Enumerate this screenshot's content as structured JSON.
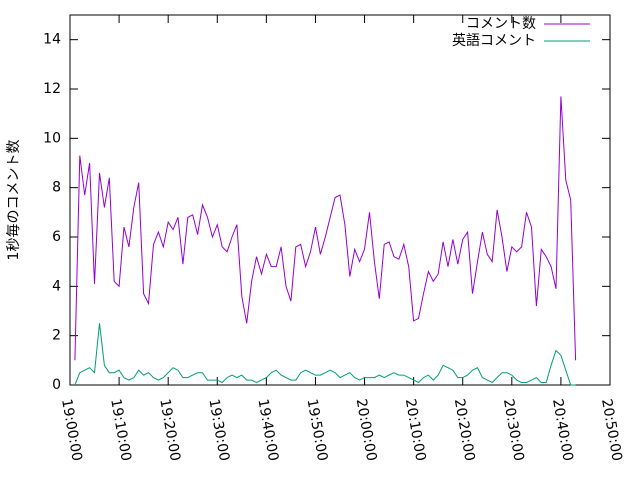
{
  "chart_data": {
    "type": "line",
    "ylabel": "1秒毎のコメント数",
    "x": [
      "19:01:00",
      "19:02:00",
      "19:03:00",
      "19:04:00",
      "19:05:00",
      "19:06:00",
      "19:07:00",
      "19:08:00",
      "19:09:00",
      "19:10:00",
      "19:11:00",
      "19:12:00",
      "19:13:00",
      "19:14:00",
      "19:15:00",
      "19:16:00",
      "19:17:00",
      "19:18:00",
      "19:19:00",
      "19:20:00",
      "19:21:00",
      "19:22:00",
      "19:23:00",
      "19:24:00",
      "19:25:00",
      "19:26:00",
      "19:27:00",
      "19:28:00",
      "19:29:00",
      "19:30:00",
      "19:31:00",
      "19:32:00",
      "19:33:00",
      "19:34:00",
      "19:35:00",
      "19:36:00",
      "19:37:00",
      "19:38:00",
      "19:39:00",
      "19:40:00",
      "19:41:00",
      "19:42:00",
      "19:43:00",
      "19:44:00",
      "19:45:00",
      "19:46:00",
      "19:47:00",
      "19:48:00",
      "19:49:00",
      "19:50:00",
      "19:51:00",
      "19:52:00",
      "19:53:00",
      "19:54:00",
      "19:55:00",
      "19:56:00",
      "19:57:00",
      "19:58:00",
      "19:59:00",
      "20:00:00",
      "20:01:00",
      "20:02:00",
      "20:03:00",
      "20:04:00",
      "20:05:00",
      "20:06:00",
      "20:07:00",
      "20:08:00",
      "20:09:00",
      "20:10:00",
      "20:11:00",
      "20:12:00",
      "20:13:00",
      "20:14:00",
      "20:15:00",
      "20:16:00",
      "20:17:00",
      "20:18:00",
      "20:19:00",
      "20:20:00",
      "20:21:00",
      "20:22:00",
      "20:23:00",
      "20:24:00",
      "20:25:00",
      "20:26:00",
      "20:27:00",
      "20:28:00",
      "20:29:00",
      "20:30:00",
      "20:31:00",
      "20:32:00",
      "20:33:00",
      "20:34:00",
      "20:35:00",
      "20:36:00",
      "20:37:00",
      "20:38:00",
      "20:39:00",
      "20:40:00",
      "20:41:00",
      "20:42:00",
      "20:43:00"
    ],
    "series": [
      {
        "name": "コメント数",
        "color": "#9400d3",
        "values": [
          1.0,
          9.3,
          7.7,
          9.0,
          4.1,
          8.6,
          7.2,
          8.4,
          4.2,
          4.0,
          6.4,
          5.6,
          7.2,
          8.2,
          3.7,
          3.3,
          5.7,
          6.2,
          5.6,
          6.6,
          6.3,
          6.8,
          4.9,
          6.8,
          6.9,
          6.1,
          7.3,
          6.8,
          6.0,
          6.5,
          5.6,
          5.4,
          6.0,
          6.5,
          3.6,
          2.5,
          4.2,
          5.2,
          4.5,
          5.3,
          4.8,
          4.8,
          5.6,
          4.0,
          3.4,
          5.6,
          5.7,
          4.8,
          5.4,
          6.4,
          5.3,
          6.0,
          6.8,
          7.6,
          7.7,
          6.5,
          4.4,
          5.5,
          5.0,
          5.5,
          7.0,
          5.0,
          3.5,
          5.7,
          5.8,
          5.2,
          5.1,
          5.7,
          4.8,
          2.6,
          2.7,
          3.7,
          4.6,
          4.2,
          4.5,
          5.8,
          4.8,
          5.9,
          4.9,
          5.9,
          6.2,
          3.7,
          5.0,
          6.2,
          5.3,
          5.0,
          7.1,
          6.0,
          4.6,
          5.6,
          5.4,
          5.6,
          7.0,
          6.4,
          3.2,
          5.5,
          5.2,
          4.8,
          3.9,
          11.7,
          8.3,
          7.5,
          1.0
        ]
      },
      {
        "name": "英語コメント",
        "color": "#009e73",
        "values": [
          0.0,
          0.5,
          0.6,
          0.7,
          0.5,
          2.5,
          0.8,
          0.5,
          0.5,
          0.6,
          0.3,
          0.2,
          0.3,
          0.6,
          0.4,
          0.5,
          0.3,
          0.2,
          0.3,
          0.5,
          0.7,
          0.6,
          0.3,
          0.3,
          0.4,
          0.5,
          0.5,
          0.2,
          0.2,
          0.2,
          0.1,
          0.3,
          0.4,
          0.3,
          0.4,
          0.2,
          0.2,
          0.1,
          0.2,
          0.3,
          0.5,
          0.6,
          0.4,
          0.3,
          0.2,
          0.2,
          0.5,
          0.6,
          0.5,
          0.4,
          0.4,
          0.5,
          0.6,
          0.5,
          0.3,
          0.4,
          0.5,
          0.3,
          0.2,
          0.3,
          0.3,
          0.3,
          0.4,
          0.3,
          0.4,
          0.5,
          0.4,
          0.4,
          0.3,
          0.2,
          0.1,
          0.3,
          0.4,
          0.2,
          0.4,
          0.8,
          0.7,
          0.6,
          0.3,
          0.3,
          0.4,
          0.6,
          0.7,
          0.3,
          0.2,
          0.1,
          0.3,
          0.5,
          0.5,
          0.4,
          0.2,
          0.1,
          0.1,
          0.2,
          0.3,
          0.1,
          0.1,
          0.8,
          1.4,
          1.2,
          0.6,
          0.0,
          0.0
        ]
      }
    ],
    "xlim": [
      "19:00:00",
      "20:50:00"
    ],
    "xticks": [
      "19:00:00",
      "19:10:00",
      "19:20:00",
      "19:30:00",
      "19:40:00",
      "19:50:00",
      "20:00:00",
      "20:10:00",
      "20:20:00",
      "20:30:00",
      "20:40:00",
      "20:50:00"
    ],
    "ylim": [
      0,
      15
    ],
    "yticks": [
      0,
      2,
      4,
      6,
      8,
      10,
      12,
      14
    ],
    "legend": "top-right"
  }
}
